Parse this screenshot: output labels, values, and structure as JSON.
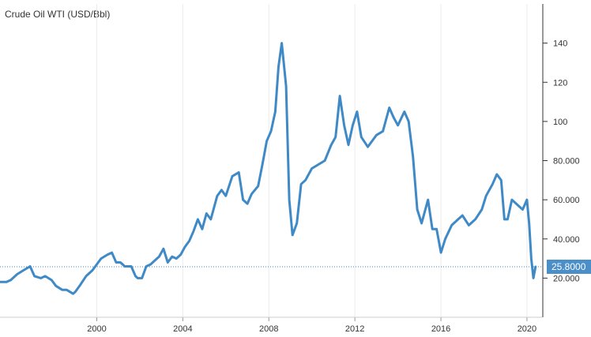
{
  "chart_data": {
    "type": "line",
    "title": "Crude Oil WTI (USD/Bbl)",
    "xlabel": "",
    "ylabel": "",
    "x_ticks": [
      "2000",
      "2004",
      "2008",
      "2012",
      "2016",
      "2020"
    ],
    "x_tick_values": [
      2000,
      2004,
      2008,
      2012,
      2016,
      2020
    ],
    "y_ticks": [
      "20.000",
      "40.000",
      "60.000",
      "80.000",
      "100",
      "120",
      "140"
    ],
    "y_tick_values": [
      20,
      40,
      60,
      80,
      100,
      120,
      140
    ],
    "xlim": [
      1995.5,
      2020.7
    ],
    "ylim": [
      0,
      160
    ],
    "y_axis_side": "right",
    "grid": "vertical",
    "last_value": 25.8,
    "last_value_label": "25.8000",
    "colors": {
      "line": "#3f8ac6",
      "reference_line": "#3f8ac6",
      "badge": "#4b8fc9",
      "axis": "#333333",
      "grid": "#ececec"
    },
    "series": [
      {
        "x": [
          1995.5,
          1995.8,
          1996.0,
          1996.3,
          1996.6,
          1996.9,
          1997.1,
          1997.4,
          1997.6,
          1997.9,
          1998.1,
          1998.4,
          1998.6,
          1998.9,
          1999.0,
          1999.2,
          1999.5,
          1999.8,
          2000.0,
          2000.2,
          2000.5,
          2000.7,
          2000.9,
          2001.1,
          2001.3,
          2001.6,
          2001.8,
          2001.9,
          2002.1,
          2002.3,
          2002.5,
          2002.7,
          2002.9,
          2003.1,
          2003.3,
          2003.5,
          2003.7,
          2003.9,
          2004.1,
          2004.3,
          2004.5,
          2004.7,
          2004.9,
          2005.1,
          2005.3,
          2005.6,
          2005.8,
          2006.0,
          2006.3,
          2006.6,
          2006.8,
          2007.0,
          2007.2,
          2007.5,
          2007.7,
          2007.9,
          2008.1,
          2008.3,
          2008.45,
          2008.6,
          2008.8,
          2008.95,
          2009.1,
          2009.3,
          2009.5,
          2009.7,
          2010.0,
          2010.3,
          2010.6,
          2010.9,
          2011.1,
          2011.3,
          2011.5,
          2011.7,
          2011.9,
          2012.1,
          2012.3,
          2012.6,
          2012.8,
          2013.0,
          2013.3,
          2013.6,
          2013.8,
          2014.0,
          2014.3,
          2014.5,
          2014.7,
          2014.9,
          2015.1,
          2015.4,
          2015.6,
          2015.8,
          2016.0,
          2016.2,
          2016.5,
          2016.8,
          2017.0,
          2017.3,
          2017.6,
          2017.9,
          2018.1,
          2018.4,
          2018.6,
          2018.8,
          2018.95,
          2019.1,
          2019.3,
          2019.6,
          2019.8,
          2020.0,
          2020.1,
          2020.2,
          2020.3,
          2020.4
        ],
        "values": [
          18,
          18,
          19,
          22,
          24,
          26,
          21,
          20,
          21,
          19,
          16,
          14,
          14,
          12,
          13,
          16,
          21,
          24,
          27,
          30,
          32,
          33,
          28,
          28,
          26,
          26,
          21,
          20,
          20,
          26,
          27,
          29,
          31,
          35,
          28,
          31,
          30,
          32,
          36,
          39,
          44,
          50,
          45,
          53,
          50,
          62,
          65,
          62,
          72,
          74,
          60,
          58,
          63,
          67,
          78,
          90,
          95,
          105,
          128,
          140,
          118,
          60,
          42,
          48,
          68,
          70,
          76,
          78,
          80,
          88,
          92,
          113,
          98,
          88,
          98,
          105,
          92,
          87,
          90,
          93,
          95,
          107,
          102,
          98,
          105,
          100,
          82,
          55,
          48,
          60,
          45,
          45,
          33,
          40,
          47,
          50,
          52,
          47,
          50,
          55,
          62,
          68,
          73,
          70,
          50,
          50,
          60,
          57,
          55,
          60,
          48,
          30,
          20,
          25.8
        ]
      }
    ]
  }
}
